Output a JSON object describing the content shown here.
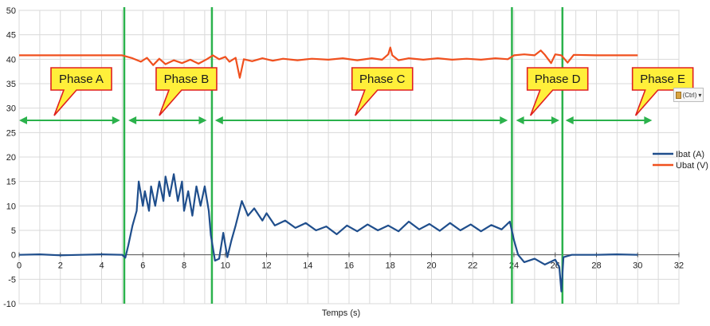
{
  "chart_data": {
    "type": "line",
    "xlabel": "Temps (s)",
    "ylabel": "",
    "xlim": [
      0,
      32
    ],
    "ylim": [
      -10,
      50
    ],
    "x_ticks": [
      "0",
      "2",
      "4",
      "6",
      "8",
      "10",
      "12",
      "14",
      "16",
      "18",
      "20",
      "22",
      "24",
      "26",
      "28",
      "30",
      "32"
    ],
    "y_ticks": [
      "50",
      "45",
      "40",
      "35",
      "30",
      "25",
      "20",
      "15",
      "10",
      "5",
      "0",
      "-5",
      "-10"
    ],
    "grid": true,
    "legend_position": "right",
    "series": [
      {
        "name": "Ibat (A)",
        "color": "#1f4e8c",
        "points": [
          [
            0,
            0
          ],
          [
            1,
            0.1
          ],
          [
            2,
            -0.1
          ],
          [
            3,
            0
          ],
          [
            4,
            0.1
          ],
          [
            5,
            0
          ],
          [
            5.15,
            -0.6
          ],
          [
            5.3,
            2
          ],
          [
            5.5,
            6
          ],
          [
            5.7,
            9
          ],
          [
            5.8,
            15
          ],
          [
            6.0,
            10
          ],
          [
            6.1,
            13
          ],
          [
            6.3,
            9
          ],
          [
            6.4,
            14
          ],
          [
            6.6,
            10
          ],
          [
            6.8,
            15
          ],
          [
            7.0,
            11
          ],
          [
            7.1,
            16
          ],
          [
            7.3,
            12
          ],
          [
            7.5,
            16.5
          ],
          [
            7.7,
            11
          ],
          [
            7.9,
            15
          ],
          [
            8.0,
            9
          ],
          [
            8.2,
            13
          ],
          [
            8.4,
            8
          ],
          [
            8.6,
            14
          ],
          [
            8.8,
            10
          ],
          [
            9.0,
            14
          ],
          [
            9.2,
            9
          ],
          [
            9.3,
            4
          ],
          [
            9.5,
            -1.2
          ],
          [
            9.7,
            -0.8
          ],
          [
            9.9,
            4.5
          ],
          [
            10.1,
            -0.5
          ],
          [
            10.3,
            3
          ],
          [
            10.5,
            6
          ],
          [
            10.8,
            11
          ],
          [
            11.1,
            8
          ],
          [
            11.4,
            9.5
          ],
          [
            11.8,
            7
          ],
          [
            12.0,
            8.5
          ],
          [
            12.4,
            6
          ],
          [
            12.9,
            7
          ],
          [
            13.4,
            5.5
          ],
          [
            13.9,
            6.5
          ],
          [
            14.4,
            5
          ],
          [
            14.9,
            5.8
          ],
          [
            15.4,
            4.2
          ],
          [
            15.9,
            6
          ],
          [
            16.4,
            4.8
          ],
          [
            16.9,
            6.2
          ],
          [
            17.4,
            5
          ],
          [
            17.9,
            6
          ],
          [
            18.4,
            4.8
          ],
          [
            18.9,
            6.8
          ],
          [
            19.4,
            5.2
          ],
          [
            19.9,
            6.3
          ],
          [
            20.4,
            4.9
          ],
          [
            20.9,
            6.5
          ],
          [
            21.4,
            5
          ],
          [
            21.9,
            6.2
          ],
          [
            22.4,
            4.8
          ],
          [
            22.9,
            6.1
          ],
          [
            23.4,
            5.2
          ],
          [
            23.8,
            6.8
          ],
          [
            24.0,
            3
          ],
          [
            24.2,
            0
          ],
          [
            24.5,
            -1.5
          ],
          [
            25.0,
            -0.8
          ],
          [
            25.5,
            -2
          ],
          [
            26.0,
            -1
          ],
          [
            26.2,
            -2.5
          ],
          [
            26.3,
            -7.5
          ],
          [
            26.4,
            -0.5
          ],
          [
            26.8,
            0
          ],
          [
            28,
            0
          ],
          [
            29,
            0.1
          ],
          [
            30,
            0
          ]
        ]
      },
      {
        "name": "Ubat (V)",
        "color": "#f0501e",
        "points": [
          [
            0,
            40.8
          ],
          [
            2,
            40.8
          ],
          [
            4,
            40.8
          ],
          [
            5,
            40.8
          ],
          [
            5.5,
            40.2
          ],
          [
            5.9,
            39.5
          ],
          [
            6.2,
            40.3
          ],
          [
            6.5,
            38.8
          ],
          [
            6.8,
            40.1
          ],
          [
            7.1,
            39.0
          ],
          [
            7.5,
            39.8
          ],
          [
            7.9,
            39.2
          ],
          [
            8.3,
            39.9
          ],
          [
            8.7,
            39.1
          ],
          [
            9.1,
            40.0
          ],
          [
            9.4,
            40.8
          ],
          [
            9.7,
            40.0
          ],
          [
            10.0,
            40.5
          ],
          [
            10.2,
            39.5
          ],
          [
            10.5,
            40.3
          ],
          [
            10.7,
            36.2
          ],
          [
            10.9,
            40.0
          ],
          [
            11.3,
            39.6
          ],
          [
            11.8,
            40.2
          ],
          [
            12.3,
            39.7
          ],
          [
            12.8,
            40.1
          ],
          [
            13.5,
            39.8
          ],
          [
            14.2,
            40.1
          ],
          [
            15.0,
            39.9
          ],
          [
            15.7,
            40.2
          ],
          [
            16.4,
            39.8
          ],
          [
            17.1,
            40.2
          ],
          [
            17.6,
            39.9
          ],
          [
            17.9,
            41.0
          ],
          [
            18.0,
            42.4
          ],
          [
            18.1,
            40.8
          ],
          [
            18.4,
            39.8
          ],
          [
            18.9,
            40.2
          ],
          [
            19.6,
            39.9
          ],
          [
            20.3,
            40.2
          ],
          [
            21.0,
            39.9
          ],
          [
            21.7,
            40.1
          ],
          [
            22.4,
            39.9
          ],
          [
            23.1,
            40.2
          ],
          [
            23.7,
            40.0
          ],
          [
            24.0,
            40.8
          ],
          [
            24.5,
            41.0
          ],
          [
            25.0,
            40.8
          ],
          [
            25.3,
            41.8
          ],
          [
            25.5,
            40.9
          ],
          [
            25.8,
            39.2
          ],
          [
            26.0,
            41.0
          ],
          [
            26.3,
            40.8
          ],
          [
            26.6,
            39.3
          ],
          [
            26.9,
            40.9
          ],
          [
            28,
            40.8
          ],
          [
            29,
            40.8
          ],
          [
            30,
            40.8
          ]
        ]
      }
    ],
    "phase_boundaries_x": [
      5.1,
      9.35,
      23.9,
      26.35
    ],
    "phase_arrows": [
      {
        "from": 0,
        "to": 4.9
      },
      {
        "from": 5.3,
        "to": 9.1
      },
      {
        "from": 9.5,
        "to": 23.7
      },
      {
        "from": 24.1,
        "to": 26.2
      },
      {
        "from": 26.5,
        "to": 30.7
      }
    ],
    "annotations": [
      {
        "label": "Phase A",
        "anchor_x": 1.7,
        "anchor_y": 28
      },
      {
        "label": "Phase B",
        "anchor_x": 6.8,
        "anchor_y": 28
      },
      {
        "label": "Phase C",
        "anchor_x": 16.3,
        "anchor_y": 28
      },
      {
        "label": "Phase D",
        "anchor_x": 24.8,
        "anchor_y": 28
      },
      {
        "label": "Phase E",
        "anchor_x": 29.9,
        "anchor_y": 28
      }
    ],
    "arrow_level_y": 27.5,
    "colors": {
      "phase_line": "#2bb24c",
      "arrow": "#2bb24c",
      "callout_fill": "#ffef3a",
      "callout_stroke": "#e02020",
      "grid": "#d9d9d9"
    }
  },
  "paste_options": {
    "label": "(Ctrl)"
  }
}
